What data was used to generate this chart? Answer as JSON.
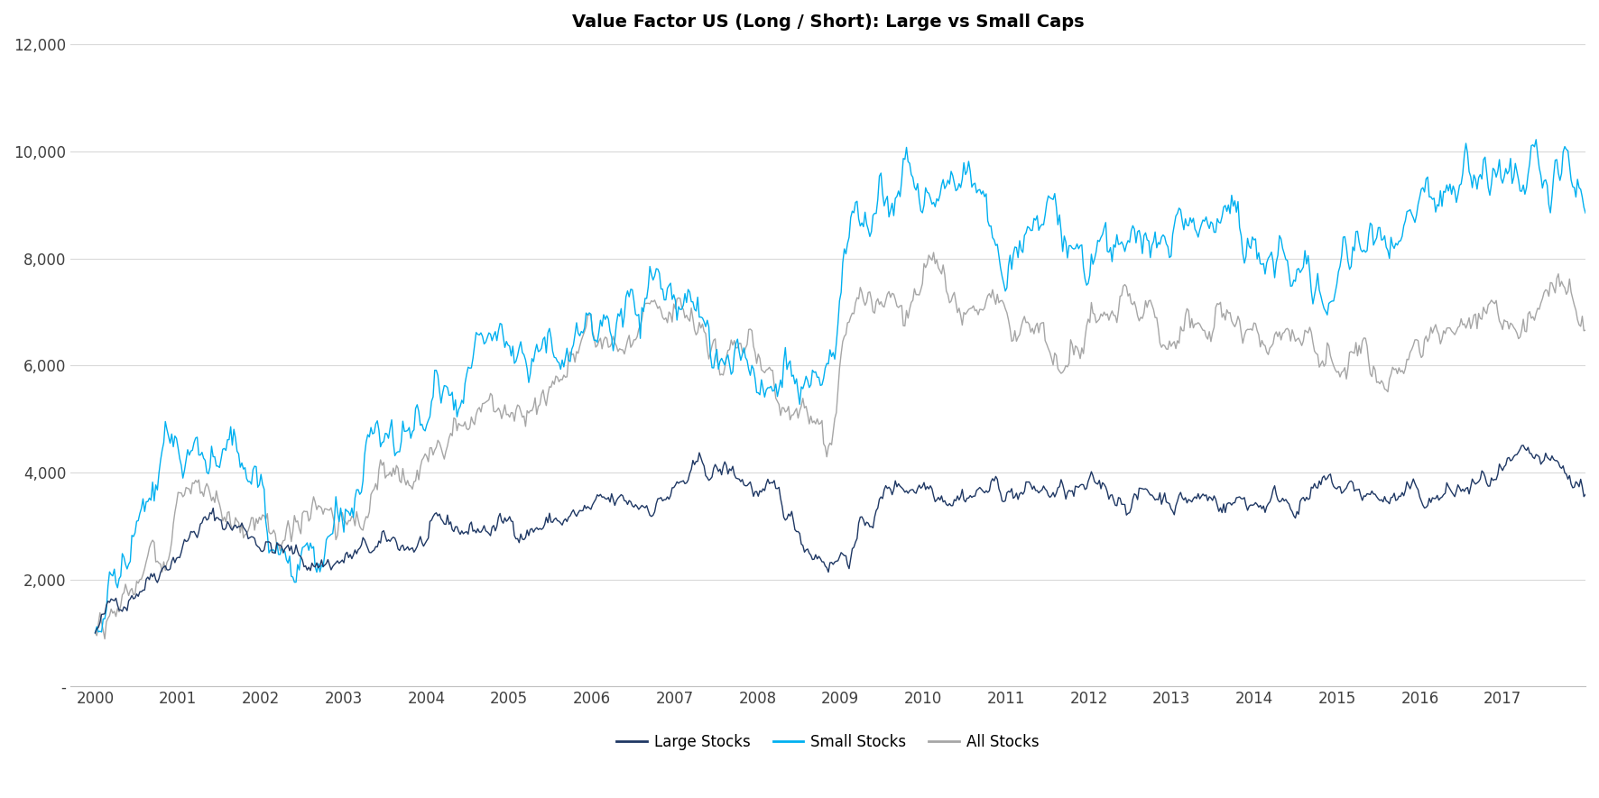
{
  "title": "Value Factor US (Long / Short): Large vs Small Caps",
  "title_fontsize": 14,
  "title_fontweight": "bold",
  "background_color": "#ffffff",
  "line_colors": {
    "large": "#1f3864",
    "small": "#00b0f0",
    "all": "#a6a6a6"
  },
  "legend_labels": [
    "Large Stocks",
    "Small Stocks",
    "All Stocks"
  ],
  "ylim": [
    0,
    12000
  ],
  "yticks": [
    0,
    2000,
    4000,
    6000,
    8000,
    10000,
    12000
  ],
  "ytick_labels": [
    "-",
    "2,000",
    "4,000",
    "6,000",
    "8,000",
    "10,000",
    "12,000"
  ],
  "grid_color": "#d9d9d9",
  "linewidth": 1.0,
  "large_anchors_years": [
    2000.0,
    2000.5,
    2001.0,
    2001.3,
    2001.7,
    2002.0,
    2002.5,
    2003.0,
    2003.5,
    2004.0,
    2004.5,
    2005.0,
    2005.5,
    2006.0,
    2006.5,
    2007.0,
    2007.3,
    2007.6,
    2007.9,
    2008.3,
    2008.6,
    2008.9,
    2009.1,
    2009.3,
    2009.6,
    2010.0,
    2010.5,
    2011.0,
    2011.5,
    2012.0,
    2012.5,
    2013.0,
    2013.5,
    2014.0,
    2014.5,
    2015.0,
    2015.5,
    2016.0,
    2016.5,
    2017.0,
    2017.5,
    2017.9
  ],
  "large_anchors_vals": [
    1000,
    2000,
    2700,
    3100,
    3000,
    2800,
    2300,
    2400,
    2500,
    2700,
    2900,
    3000,
    3100,
    3200,
    3300,
    3700,
    3900,
    4000,
    3800,
    3200,
    2700,
    2500,
    2600,
    3000,
    3700,
    3900,
    3800,
    3700,
    3600,
    3500,
    3600,
    3600,
    3500,
    3500,
    3600,
    3600,
    3500,
    3400,
    3600,
    3800,
    3900,
    3600
  ],
  "small_anchors_years": [
    2000.0,
    2000.5,
    2001.0,
    2001.3,
    2001.7,
    2002.0,
    2002.5,
    2003.0,
    2003.5,
    2004.0,
    2004.5,
    2005.0,
    2005.5,
    2006.0,
    2006.5,
    2007.0,
    2007.3,
    2007.6,
    2007.9,
    2008.2,
    2008.5,
    2008.75,
    2008.9,
    2009.0,
    2009.2,
    2009.5,
    2010.0,
    2010.5,
    2011.0,
    2011.5,
    2012.0,
    2012.5,
    2013.0,
    2013.5,
    2014.0,
    2014.3,
    2014.6,
    2015.0,
    2015.3,
    2015.6,
    2016.0,
    2016.3,
    2016.6,
    2017.0,
    2017.5,
    2017.9
  ],
  "small_anchors_vals": [
    1000,
    2800,
    4200,
    4500,
    4300,
    3800,
    2500,
    3000,
    4000,
    5000,
    5800,
    6500,
    6700,
    6900,
    7100,
    7200,
    7000,
    6700,
    6200,
    5800,
    5200,
    5100,
    5000,
    6500,
    8500,
    9000,
    9200,
    9000,
    8500,
    8300,
    8400,
    8600,
    8700,
    8600,
    8400,
    8200,
    8000,
    8100,
    8300,
    8500,
    9000,
    9500,
    10000,
    9500,
    9300,
    9400
  ],
  "all_anchors_years": [
    2000.0,
    2000.5,
    2001.0,
    2001.3,
    2001.7,
    2002.0,
    2002.5,
    2003.0,
    2003.5,
    2004.0,
    2004.5,
    2005.0,
    2005.5,
    2006.0,
    2006.5,
    2007.0,
    2007.3,
    2007.6,
    2007.9,
    2008.2,
    2008.5,
    2008.75,
    2008.9,
    2009.0,
    2009.2,
    2009.5,
    2010.0,
    2010.5,
    2011.0,
    2011.5,
    2012.0,
    2012.5,
    2013.0,
    2013.5,
    2014.0,
    2014.5,
    2015.0,
    2015.5,
    2016.0,
    2016.5,
    2017.0,
    2017.5,
    2017.9
  ],
  "all_anchors_vals": [
    1000,
    2200,
    3200,
    3500,
    3400,
    3200,
    3000,
    3200,
    3700,
    4300,
    5000,
    5500,
    5800,
    6100,
    6300,
    6500,
    6300,
    6100,
    5800,
    5500,
    5000,
    4700,
    4400,
    5500,
    7000,
    7200,
    7300,
    7100,
    6800,
    6700,
    6700,
    6800,
    6900,
    6800,
    6700,
    6600,
    6500,
    6400,
    6500,
    6700,
    7000,
    7200,
    7200
  ]
}
